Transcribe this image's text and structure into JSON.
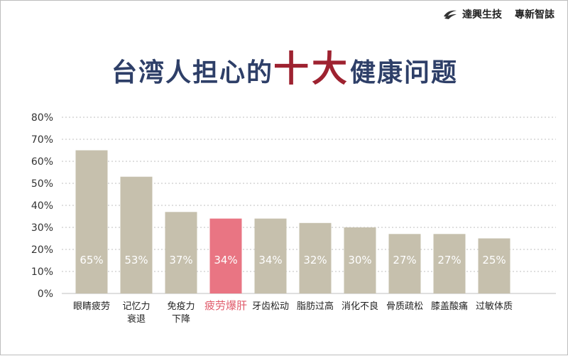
{
  "brand": {
    "company": "達興生技",
    "magazine": "專新智誌",
    "logo_icon": "swoosh-logo-icon"
  },
  "title": {
    "prefix": "台湾人担心的",
    "highlight": "十大",
    "suffix": "健康问题"
  },
  "colors": {
    "bar": "#c6c0ad",
    "highlight_bar": "#e97583",
    "highlight_label": "#e05a6a",
    "title": "#2e3f68",
    "title_highlight": "#9e2230",
    "grid": "#bfbfbf"
  },
  "chart_data": {
    "type": "bar",
    "title": "台湾人担心的十大健康问题",
    "categories": [
      [
        "眼睛疲劳"
      ],
      [
        "记忆力",
        "衰退"
      ],
      [
        "免疫力",
        "下降"
      ],
      [
        "疲劳爆肝"
      ],
      [
        "牙齿松动"
      ],
      [
        "脂肪过高"
      ],
      [
        "消化不良"
      ],
      [
        "骨质疏松"
      ],
      [
        "膝盖酸痛"
      ],
      [
        "过敏体质"
      ]
    ],
    "values": [
      65,
      53,
      37,
      34,
      34,
      32,
      30,
      27,
      27,
      25
    ],
    "value_labels": [
      "65%",
      "53%",
      "37%",
      "34%",
      "34%",
      "32%",
      "30%",
      "27%",
      "27%",
      "25%"
    ],
    "highlight_index": 3,
    "ylim": [
      0,
      80
    ],
    "yticks": [
      "0%",
      "10%",
      "20%",
      "30%",
      "40%",
      "50%",
      "60%",
      "70%",
      "80%"
    ],
    "grid": true,
    "grid_style": "dotted",
    "legend": "none"
  }
}
